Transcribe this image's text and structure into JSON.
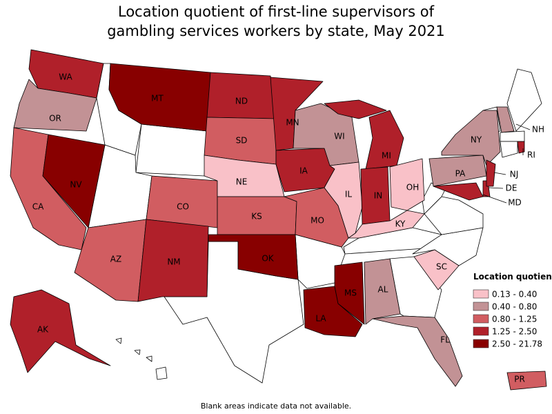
{
  "title": [
    "Location quotient of first-line supervisors of",
    "gambling services workers by state, May 2021"
  ],
  "legend": {
    "title": "Location quotient",
    "items": [
      {
        "label": "0.13 - 0.40",
        "color": "#f9c1c8"
      },
      {
        "label": "0.40 - 0.80",
        "color": "#c29295"
      },
      {
        "label": "0.80 - 1.25",
        "color": "#d15d61"
      },
      {
        "label": "1.25 - 2.50",
        "color": "#b0202a"
      },
      {
        "label": "2.50 - 21.78",
        "color": "#880000"
      }
    ]
  },
  "states": [
    {
      "name": "WA",
      "color": "#b0202a"
    },
    {
      "name": "OR",
      "color": "#c29295"
    },
    {
      "name": "CA",
      "color": "#d15d61"
    },
    {
      "name": "NV",
      "color": "#880000"
    },
    {
      "name": "MT",
      "color": "#880000"
    },
    {
      "name": "AZ",
      "color": "#d15d61"
    },
    {
      "name": "CO",
      "color": "#d15d61"
    },
    {
      "name": "NM",
      "color": "#b0202a"
    },
    {
      "name": "ND",
      "color": "#b0202a"
    },
    {
      "name": "SD",
      "color": "#d15d61"
    },
    {
      "name": "NE",
      "color": "#f9c1c8"
    },
    {
      "name": "KS",
      "color": "#d15d61"
    },
    {
      "name": "OK",
      "color": "#880000"
    },
    {
      "name": "MN",
      "color": "#b0202a"
    },
    {
      "name": "IA",
      "color": "#b0202a"
    },
    {
      "name": "MO",
      "color": "#d15d61"
    },
    {
      "name": "WI",
      "color": "#c29295"
    },
    {
      "name": "IL",
      "color": "#f9c1c8"
    },
    {
      "name": "MI",
      "color": "#b0202a"
    },
    {
      "name": "IN",
      "color": "#b0202a"
    },
    {
      "name": "OH",
      "color": "#f9c1c8"
    },
    {
      "name": "KY",
      "color": "#f9c1c8"
    },
    {
      "name": "LA",
      "color": "#880000"
    },
    {
      "name": "MS",
      "color": "#880000"
    },
    {
      "name": "AL",
      "color": "#c29295"
    },
    {
      "name": "FL",
      "color": "#c29295"
    },
    {
      "name": "SC",
      "color": "#f9c1c8"
    },
    {
      "name": "PA",
      "color": "#c29295"
    },
    {
      "name": "NY",
      "color": "#c29295"
    },
    {
      "name": "MD",
      "color": "#b0202a"
    },
    {
      "name": "DE",
      "color": "#b0202a"
    },
    {
      "name": "NJ",
      "color": "#b0202a"
    },
    {
      "name": "NH",
      "color": "#c29295"
    },
    {
      "name": "RI",
      "color": "#b0202a"
    },
    {
      "name": "AK",
      "color": "#b0202a"
    },
    {
      "name": "PR",
      "color": "#d15d61"
    }
  ],
  "note": "Blank areas indicate data not available."
}
